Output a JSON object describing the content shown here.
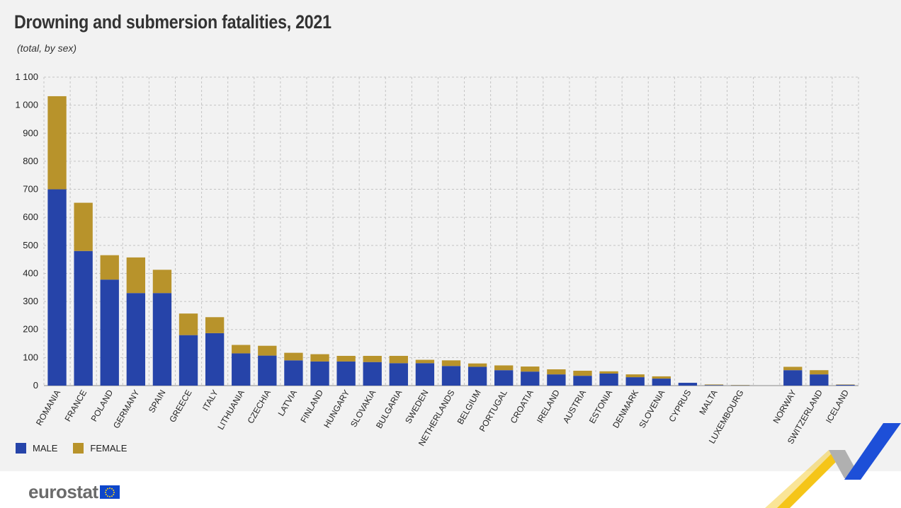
{
  "title": "Drowning and submersion fatalities, 2021",
  "subtitle": "(total, by sex)",
  "legend": [
    {
      "name": "MALE",
      "color": "#2644a9"
    },
    {
      "name": "FEMALE",
      "color": "#b8932b"
    }
  ],
  "logo": {
    "text": "eurostat",
    "icon": "eu-flag-icon"
  },
  "chart_data": {
    "type": "bar",
    "stacked": true,
    "title": "Drowning and submersion fatalities, 2021",
    "subtitle": "(total, by sex)",
    "categories": [
      "ROMANIA",
      "FRANCE",
      "POLAND",
      "GERMANY",
      "SPAIN",
      "GREECE",
      "ITALY",
      "LITHUANIA",
      "CZECHIA",
      "LATVIA",
      "FINLAND",
      "HUNGARY",
      "SLOVAKIA",
      "BULGARIA",
      "SWEDEN",
      "NETHERLANDS",
      "BELGIUM",
      "PORTUGAL",
      "CROATIA",
      "IRELAND",
      "AUSTRIA",
      "ESTONIA",
      "DENMARK",
      "SLOVENIA",
      "CYPRUS",
      "MALTA",
      "LUXEMBOURG",
      "",
      "NORWAY",
      "SWITZERLAND",
      "ICELAND"
    ],
    "series": [
      {
        "name": "MALE",
        "color": "#2644a9",
        "values": [
          700,
          480,
          378,
          330,
          330,
          180,
          187,
          115,
          107,
          90,
          86,
          86,
          84,
          80,
          80,
          70,
          67,
          55,
          50,
          40,
          35,
          43,
          30,
          25,
          10,
          2,
          1,
          null,
          55,
          40,
          3
        ]
      },
      {
        "name": "FEMALE",
        "color": "#b8932b",
        "values": [
          332,
          172,
          87,
          127,
          83,
          77,
          57,
          30,
          35,
          27,
          26,
          20,
          22,
          26,
          12,
          20,
          12,
          17,
          18,
          18,
          18,
          8,
          10,
          8,
          0,
          2,
          1,
          null,
          12,
          15,
          1
        ]
      }
    ],
    "yticks": [
      "0",
      "100",
      "200",
      "300",
      "400",
      "500",
      "600",
      "700",
      "800",
      "900",
      "1 000",
      "1 100"
    ],
    "ylim": [
      0,
      1100
    ],
    "grid": true,
    "legend_position": "bottom-left"
  }
}
